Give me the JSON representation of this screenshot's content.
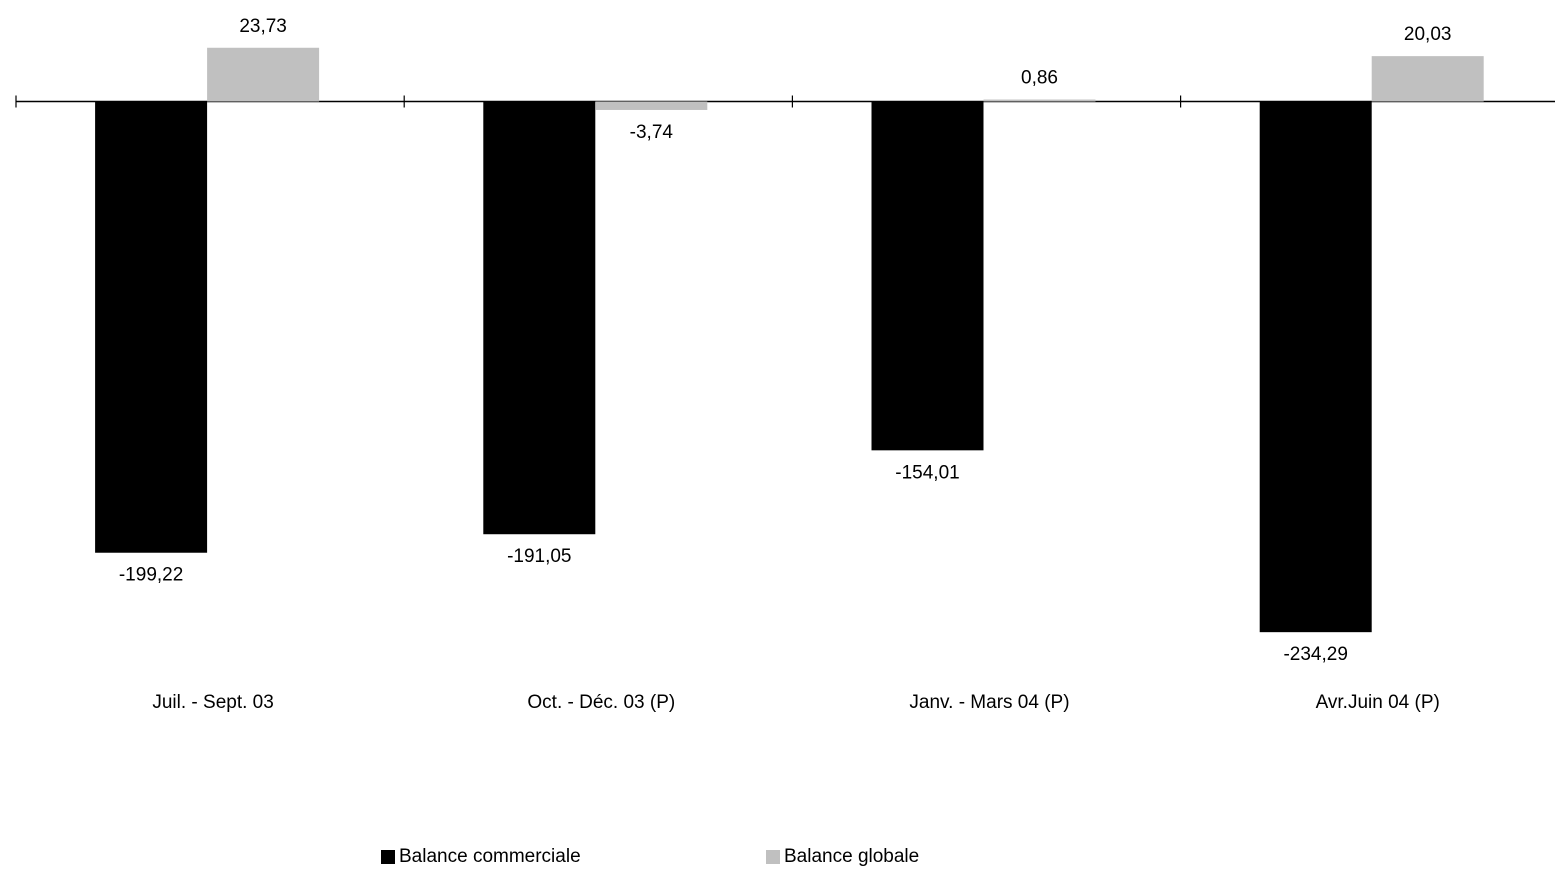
{
  "chart_data": {
    "type": "bar",
    "categories": [
      "Juil. - Sept. 03",
      "Oct. - Déc. 03 (P)",
      "Janv. - Mars 04 (P)",
      "Avr.Juin 04 (P)"
    ],
    "series": [
      {
        "name": "Balance commerciale",
        "color": "#000000",
        "values": [
          -199.22,
          -191.05,
          -154.01,
          -234.29
        ],
        "labels": [
          "-199,22",
          "-191,05",
          "-154,01",
          "-234,29"
        ]
      },
      {
        "name": "Balance globale",
        "color": "#c0c0c0",
        "values": [
          23.73,
          -3.74,
          0.86,
          20.03
        ],
        "labels": [
          "23,73",
          "-3,74",
          "0,86",
          "20,03"
        ]
      }
    ],
    "title": "",
    "xlabel": "",
    "ylabel": "",
    "y_axis_visible": false,
    "grid": false,
    "legend_position": "bottom"
  }
}
